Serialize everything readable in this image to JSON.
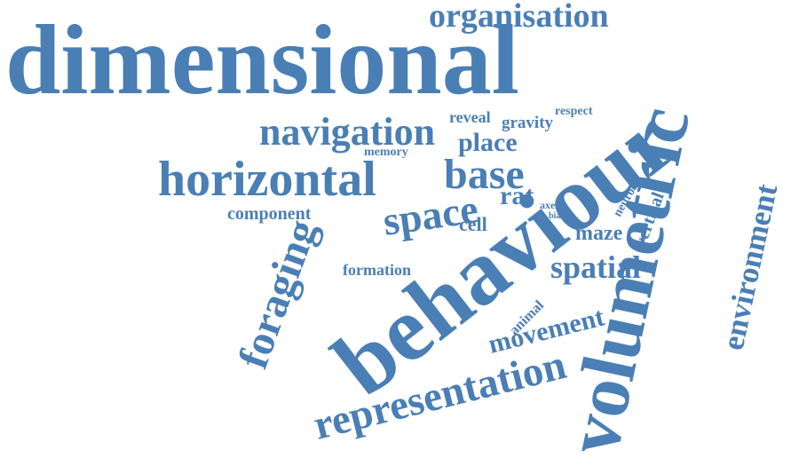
{
  "colors": {
    "word": "#4a7fb5",
    "background": "#ffffff"
  },
  "words": [
    {
      "id": "dimensional",
      "text": "dimensional",
      "weight": 100
    },
    {
      "id": "behaviour",
      "text": "behaviour",
      "weight": 96
    },
    {
      "id": "volumetric",
      "text": "volumetric",
      "weight": 74
    },
    {
      "id": "horizontal",
      "text": "horizontal",
      "weight": 50
    },
    {
      "id": "foraging",
      "text": "foraging",
      "weight": 43
    },
    {
      "id": "representation",
      "text": "representation",
      "weight": 43
    },
    {
      "id": "space",
      "text": "space",
      "weight": 42
    },
    {
      "id": "base",
      "text": "base",
      "weight": 40
    },
    {
      "id": "navigation",
      "text": "navigation",
      "weight": 38
    },
    {
      "id": "environment",
      "text": "environment",
      "weight": 32
    },
    {
      "id": "organisation",
      "text": "organisation",
      "weight": 31
    },
    {
      "id": "spatial",
      "text": "spatial",
      "weight": 31
    },
    {
      "id": "movement",
      "text": "movement",
      "weight": 27
    },
    {
      "id": "place",
      "text": "place",
      "weight": 26
    },
    {
      "id": "rat",
      "text": "rat",
      "weight": 25
    },
    {
      "id": "maze",
      "text": "maze",
      "weight": 21
    },
    {
      "id": "component",
      "text": "component",
      "weight": 18
    },
    {
      "id": "vertical",
      "text": "vertical",
      "weight": 18
    },
    {
      "id": "cell",
      "text": "cell",
      "weight": 18
    },
    {
      "id": "gravity",
      "text": "gravity",
      "weight": 17
    },
    {
      "id": "formation",
      "text": "formation",
      "weight": 16
    },
    {
      "id": "reveal",
      "text": "reveal",
      "weight": 16
    },
    {
      "id": "animal",
      "text": "animal",
      "weight": 15
    },
    {
      "id": "memory",
      "text": "memory",
      "weight": 13
    },
    {
      "id": "respect",
      "text": "respect",
      "weight": 12
    },
    {
      "id": "neuron",
      "text": "neuron",
      "weight": 12
    },
    {
      "id": "axe",
      "text": "axe",
      "weight": 11
    },
    {
      "id": "bias",
      "text": "bias",
      "weight": 9
    }
  ]
}
